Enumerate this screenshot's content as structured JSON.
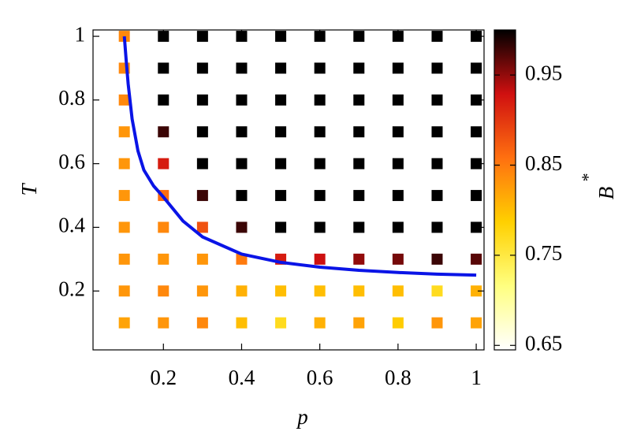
{
  "chart_data": {
    "type": "scatter",
    "xlabel": "p",
    "ylabel": "T",
    "xlim": [
      0.02,
      1.02
    ],
    "ylim": [
      0.015,
      1.02
    ],
    "xticks": [
      0.2,
      0.4,
      0.6,
      0.8,
      1
    ],
    "yticks": [
      0.2,
      0.4,
      0.6,
      0.8,
      1
    ],
    "x": [
      0.1,
      0.2,
      0.3,
      0.4,
      0.5,
      0.6,
      0.7,
      0.8,
      0.9,
      1.0
    ],
    "y": [
      0.1,
      0.2,
      0.3,
      0.4,
      0.5,
      0.6,
      0.7,
      0.8,
      0.9,
      1.0
    ],
    "values": [
      [
        0.82,
        0.83,
        0.84,
        0.8,
        0.77,
        0.81,
        0.82,
        0.79,
        0.83,
        0.82
      ],
      [
        0.83,
        0.84,
        0.83,
        0.81,
        0.8,
        0.8,
        0.8,
        0.8,
        0.77,
        0.81
      ],
      [
        0.83,
        0.83,
        0.83,
        0.85,
        0.92,
        0.93,
        0.95,
        0.96,
        0.98,
        0.97
      ],
      [
        0.83,
        0.84,
        0.88,
        0.98,
        1.0,
        1.0,
        1.0,
        1.0,
        1.0,
        1.0
      ],
      [
        0.83,
        0.86,
        0.98,
        1.0,
        1.0,
        1.0,
        1.0,
        1.0,
        1.0,
        1.0
      ],
      [
        0.83,
        0.92,
        1.0,
        1.0,
        1.0,
        1.0,
        1.0,
        1.0,
        1.0,
        1.0
      ],
      [
        0.83,
        0.98,
        1.0,
        1.0,
        1.0,
        1.0,
        1.0,
        1.0,
        1.0,
        1.0
      ],
      [
        0.84,
        1.0,
        1.0,
        1.0,
        1.0,
        1.0,
        1.0,
        1.0,
        1.0,
        1.0
      ],
      [
        0.84,
        1.0,
        1.0,
        1.0,
        1.0,
        1.0,
        1.0,
        1.0,
        1.0,
        1.0
      ],
      [
        0.84,
        1.0,
        1.0,
        1.0,
        1.0,
        1.0,
        1.0,
        1.0,
        1.0,
        1.0
      ]
    ],
    "curve": {
      "color": "#0a14e6",
      "x": [
        0.1,
        0.105,
        0.11,
        0.12,
        0.135,
        0.15,
        0.175,
        0.2,
        0.25,
        0.3,
        0.4,
        0.5,
        0.6,
        0.7,
        0.8,
        0.9,
        1.0
      ],
      "y": [
        1.0,
        0.92,
        0.85,
        0.74,
        0.64,
        0.58,
        0.53,
        0.495,
        0.42,
        0.37,
        0.316,
        0.29,
        0.275,
        0.265,
        0.258,
        0.253,
        0.25
      ]
    },
    "colorbar": {
      "label": "B",
      "label_sup": "*",
      "lim": [
        0.645,
        1.0
      ],
      "ticks": [
        0.65,
        0.75,
        0.85,
        0.95
      ],
      "colors": [
        "#ffffff",
        "#ffff80",
        "#ffd000",
        "#ff7010",
        "#d01010",
        "#000000"
      ]
    }
  }
}
